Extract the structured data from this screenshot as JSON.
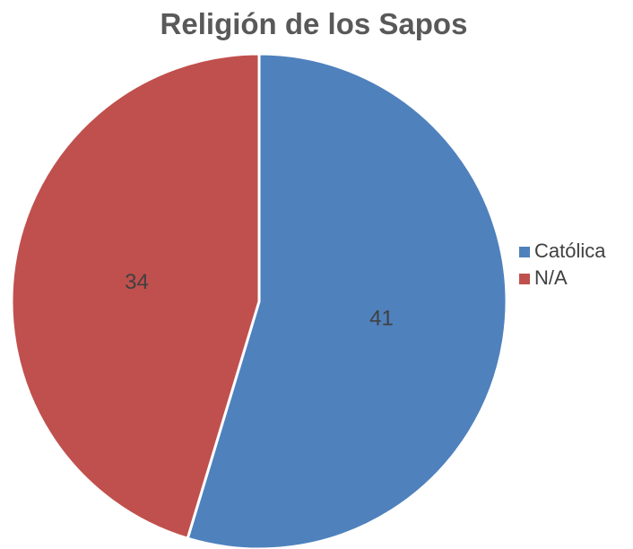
{
  "chart_data": {
    "type": "pie",
    "title": "Religión de los Sapos",
    "categories": [
      "Católica",
      "N/A"
    ],
    "values": [
      41,
      34
    ],
    "colors": [
      "#4f81bd",
      "#c0504d"
    ],
    "start_angle_deg": 0,
    "direction": "clockwise",
    "legend_position": "right",
    "data_labels": [
      "41",
      "34"
    ]
  }
}
